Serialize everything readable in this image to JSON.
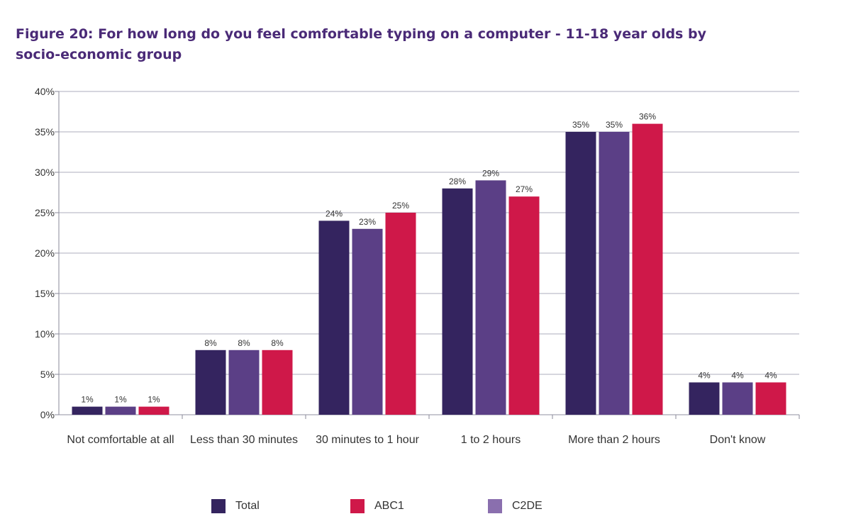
{
  "chart_data": {
    "type": "bar",
    "title": "Figure 20: For how long do you feel comfortable typing on a computer - 11-18 year olds by socio-economic group",
    "categories": [
      "Not comfortable at all",
      "Less than 30 minutes",
      "30 minutes to 1 hour",
      "1 to 2 hours",
      "More than 2 hours",
      "Don't know"
    ],
    "series": [
      {
        "name": "Total",
        "color": "#34245f",
        "values": [
          1,
          8,
          24,
          28,
          35,
          4
        ],
        "labels": [
          "1%",
          "8%",
          "24%",
          "28%",
          "35%",
          "4%"
        ]
      },
      {
        "name": "C2DE",
        "color": "#5b3f86",
        "values": [
          1,
          8,
          23,
          29,
          35,
          4
        ],
        "labels": [
          "1%",
          "8%",
          "23%",
          "29%",
          "35%",
          "4%"
        ]
      },
      {
        "name": "ABC1",
        "color": "#cf1849",
        "values": [
          1,
          8,
          25,
          27,
          36,
          4
        ],
        "labels": [
          "1%",
          "8%",
          "25%",
          "27%",
          "36%",
          "4%"
        ]
      }
    ],
    "ylim": [
      0,
      40
    ],
    "yticks": [
      "0%",
      "5%",
      "10%",
      "15%",
      "20%",
      "25%",
      "30%",
      "35%",
      "40%"
    ],
    "grid": true,
    "legend_position": "bottom",
    "legend": [
      {
        "name": "Total",
        "color": "#34245f"
      },
      {
        "name": "ABC1",
        "color": "#cf1849"
      },
      {
        "name": "C2DE",
        "color": "#8a6fae"
      }
    ]
  }
}
